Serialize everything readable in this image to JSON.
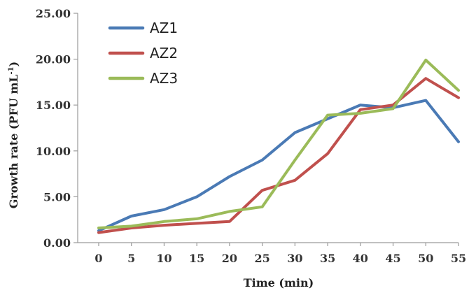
{
  "chart_data": {
    "type": "line",
    "title": "",
    "xlabel": "Time (min)",
    "ylabel": "Growth rate (PFU mL",
    "ylabel_superscript": "-1",
    "ylabel_close": ")",
    "x": [
      0,
      5,
      10,
      15,
      20,
      25,
      30,
      35,
      40,
      45,
      50,
      55
    ],
    "x_tick_labels": [
      "0",
      "5",
      "10",
      "15",
      "20",
      "25",
      "30",
      "35",
      "40",
      "45",
      "50",
      "55"
    ],
    "ylim": [
      0,
      25
    ],
    "y_ticks": [
      0,
      5,
      10,
      15,
      20,
      25
    ],
    "y_tick_labels": [
      "0.00",
      "5.00",
      "10.00",
      "15.00",
      "20.00",
      "25.00"
    ],
    "grid": false,
    "legend_position": "top-left",
    "series": [
      {
        "name": "AZ1",
        "color": "#4a7ab5",
        "values": [
          1.3,
          2.9,
          3.6,
          5.0,
          7.2,
          9.0,
          12.0,
          13.5,
          15.0,
          14.7,
          15.5,
          11.0
        ]
      },
      {
        "name": "AZ2",
        "color": "#c0504d",
        "values": [
          1.1,
          1.6,
          1.9,
          2.1,
          2.3,
          5.7,
          6.8,
          9.7,
          14.5,
          15.0,
          17.9,
          15.8
        ]
      },
      {
        "name": "AZ3",
        "color": "#9bbb59",
        "values": [
          1.6,
          1.8,
          2.3,
          2.6,
          3.4,
          3.9,
          9.0,
          13.9,
          14.1,
          14.6,
          19.9,
          16.6
        ]
      }
    ]
  }
}
